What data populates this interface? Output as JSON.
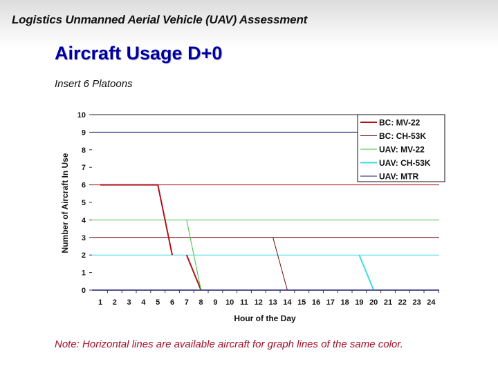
{
  "header": {
    "title": "Logistics Unmanned Aerial Vehicle (UAV) Assessment"
  },
  "slide": {
    "title": "Aircraft Usage D+0",
    "subtitle": "Insert 6 Platoons",
    "note": "Note: Horizontal lines are available aircraft for graph lines of the same color."
  },
  "chart_data": {
    "type": "line",
    "title": "Aircraft Usage D+0",
    "subtitle": "Insert 6 Platoons",
    "xlabel": "Hour of the Day",
    "ylabel": "Number of Aircraft In Use",
    "x_ticks": [
      "1",
      "2",
      "3",
      "4",
      "5",
      "6",
      "7",
      "8",
      "9",
      "10",
      "11",
      "12",
      "13",
      "14",
      "15",
      "16",
      "17",
      "18",
      "19",
      "20",
      "21",
      "22",
      "23",
      "24"
    ],
    "y_ticks": [
      "0",
      "1",
      "2",
      "3",
      "4",
      "5",
      "6",
      "7",
      "8",
      "9",
      "10"
    ],
    "xlim": [
      1,
      24
    ],
    "ylim": [
      0,
      10
    ],
    "grid": false,
    "legend_position": "upper right",
    "series": [
      {
        "name": "BC: MV-22",
        "color": "#b01018",
        "width": 2,
        "available": 6,
        "segments": [
          [
            [
              1,
              6
            ],
            [
              5,
              6
            ],
            [
              6,
              2
            ]
          ],
          [
            [
              7,
              2
            ],
            [
              8,
              0
            ]
          ]
        ]
      },
      {
        "name": "BC: CH-53K",
        "color": "#6a0a14",
        "width": 1,
        "available": 3,
        "segments": [
          [
            [
              13,
              3
            ],
            [
              14,
              0
            ]
          ]
        ]
      },
      {
        "name": "UAV: MV-22",
        "color": "#40c040",
        "width": 1,
        "available": 4,
        "segments": [
          [
            [
              7,
              4
            ],
            [
              8,
              0
            ]
          ]
        ]
      },
      {
        "name": "UAV: CH-53K",
        "color": "#40d8e0",
        "width": 2,
        "available": 2,
        "segments": [
          [
            [
              19,
              2
            ],
            [
              20,
              0
            ]
          ]
        ]
      },
      {
        "name": "UAV: MTR",
        "color": "#1a1a70",
        "width": 1,
        "available": 9,
        "segments": [
          [
            [
              1,
              0
            ],
            [
              24,
              0
            ]
          ]
        ]
      }
    ]
  }
}
